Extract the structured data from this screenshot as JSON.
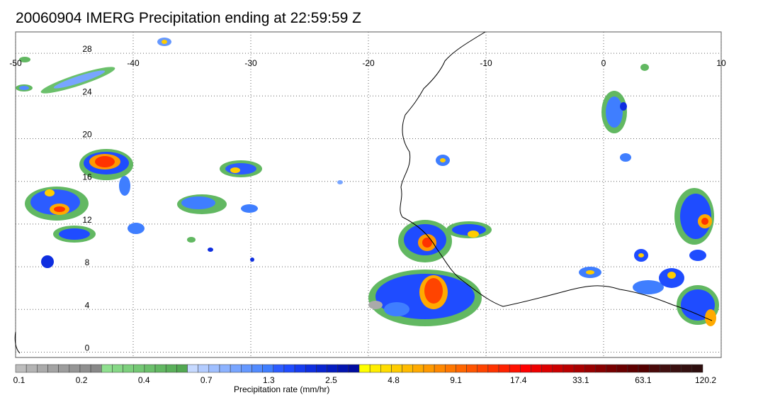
{
  "title": "20060904 IMERG Precipitation ending at 22:59:59 Z",
  "map": {
    "lon_ticks": [
      "-50",
      "-40",
      "-30",
      "-20",
      "-10",
      "0",
      "10"
    ],
    "lat_ticks": [
      "28",
      "24",
      "20",
      "16",
      "12",
      "8",
      "4",
      "0"
    ],
    "extent": {
      "lon_min": -50,
      "lon_max": 10,
      "lat_min": -0.5,
      "lat_max": 30
    }
  },
  "colorbar": {
    "label": "Precipitation rate (mm/hr)",
    "tick_labels": [
      "0.1",
      "0.2",
      "0.4",
      "0.7",
      "1.3",
      "2.5",
      "4.8",
      "9.1",
      "17.4",
      "33.1",
      "63.1",
      "120.2"
    ],
    "colors": [
      "#bdbdbd",
      "#b3b3b3",
      "#aaaaaa",
      "#a3a3a3",
      "#9c9c9c",
      "#959595",
      "#8f8f8f",
      "#888888",
      "#8fe08f",
      "#86d886",
      "#7dd07d",
      "#74c874",
      "#6bc06b",
      "#62b862",
      "#5ab05a",
      "#52a852",
      "#c6d9ff",
      "#b3ccff",
      "#9fbfff",
      "#8cb2ff",
      "#78a5ff",
      "#6598ff",
      "#528bff",
      "#3f7eff",
      "#2c5cff",
      "#1f4cff",
      "#163cf0",
      "#0e2ee0",
      "#0824d0",
      "#041cc0",
      "#0214b0",
      "#000ca0",
      "#ffff00",
      "#ffee00",
      "#ffdd00",
      "#ffcc00",
      "#ffbb00",
      "#ffaa00",
      "#ff9900",
      "#ff8800",
      "#ff7700",
      "#ff6600",
      "#ff5500",
      "#ff4400",
      "#ff3300",
      "#ff2200",
      "#ff1100",
      "#ff0000",
      "#ee0000",
      "#dd0000",
      "#cc0000",
      "#bb0000",
      "#aa0000",
      "#990000",
      "#880000",
      "#780000",
      "#6a0000",
      "#5e0000",
      "#540000",
      "#4a0a0a",
      "#421010",
      "#3a1010",
      "#341010",
      "#2e0e0e"
    ]
  }
}
